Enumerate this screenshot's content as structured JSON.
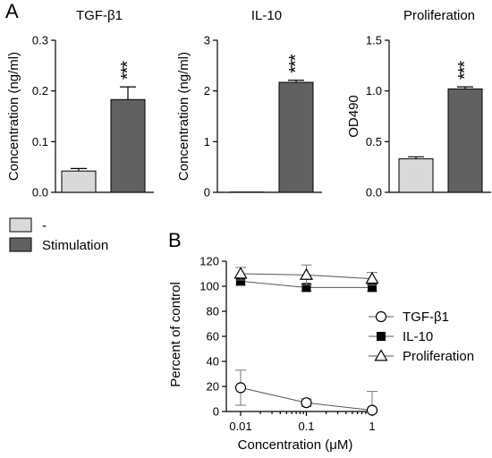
{
  "panel_labels": {
    "a": "A",
    "b": "B"
  },
  "legend_a": {
    "items": [
      {
        "label": "-",
        "color": "#d9d9d9"
      },
      {
        "label": "Stimulation",
        "color": "#616161"
      }
    ]
  },
  "chart_data": [
    {
      "type": "bar",
      "title": "TGF-β1",
      "ylabel": "Concentration (ng/ml)",
      "ylim": [
        0,
        0.3
      ],
      "yticks": [
        "0.0",
        "0.1",
        "0.2",
        "0.3"
      ],
      "categories": [
        "-",
        "Stimulation"
      ],
      "values": [
        0.042,
        0.183
      ],
      "errors": [
        0.005,
        0.025
      ],
      "colors": [
        "#d9d9d9",
        "#616161"
      ],
      "annotation": "***"
    },
    {
      "type": "bar",
      "title": "IL-10",
      "ylabel": "Concentration (ng/ml)",
      "ylim": [
        0,
        3
      ],
      "yticks": [
        "0",
        "1",
        "2",
        "3"
      ],
      "categories": [
        "-",
        "Stimulation"
      ],
      "values": [
        0.005,
        2.17
      ],
      "errors": [
        0,
        0.04
      ],
      "colors": [
        "#d9d9d9",
        "#616161"
      ],
      "annotation": "***"
    },
    {
      "type": "bar",
      "title": "Proliferation",
      "ylabel": "OD490",
      "ylim": [
        0,
        1.5
      ],
      "yticks": [
        "0.0",
        "0.5",
        "1.0",
        "1.5"
      ],
      "categories": [
        "-",
        "Stimulation"
      ],
      "values": [
        0.33,
        1.02
      ],
      "errors": [
        0.02,
        0.02
      ],
      "colors": [
        "#d9d9d9",
        "#616161"
      ],
      "annotation": "***"
    },
    {
      "type": "line",
      "xlabel": "Concentration (μM)",
      "ylabel": "Percent of control",
      "xscale": "log",
      "x": [
        0.01,
        0.1,
        1
      ],
      "xticks": [
        "0.01",
        "0.1",
        "1"
      ],
      "ylim": [
        0,
        120
      ],
      "yticks": [
        "0",
        "20",
        "40",
        "60",
        "80",
        "100",
        "120"
      ],
      "legend_position": "right",
      "series": [
        {
          "name": "TGF-β1",
          "marker": "circle-open",
          "values": [
            19,
            7,
            1
          ],
          "errors": [
            14,
            3,
            15
          ]
        },
        {
          "name": "IL-10",
          "marker": "square-filled",
          "values": [
            104,
            99,
            99
          ],
          "errors": [
            3,
            3,
            3
          ]
        },
        {
          "name": "Proliferation",
          "marker": "triangle-open",
          "values": [
            110,
            109,
            106
          ],
          "errors": [
            5,
            8,
            5
          ]
        }
      ]
    }
  ]
}
